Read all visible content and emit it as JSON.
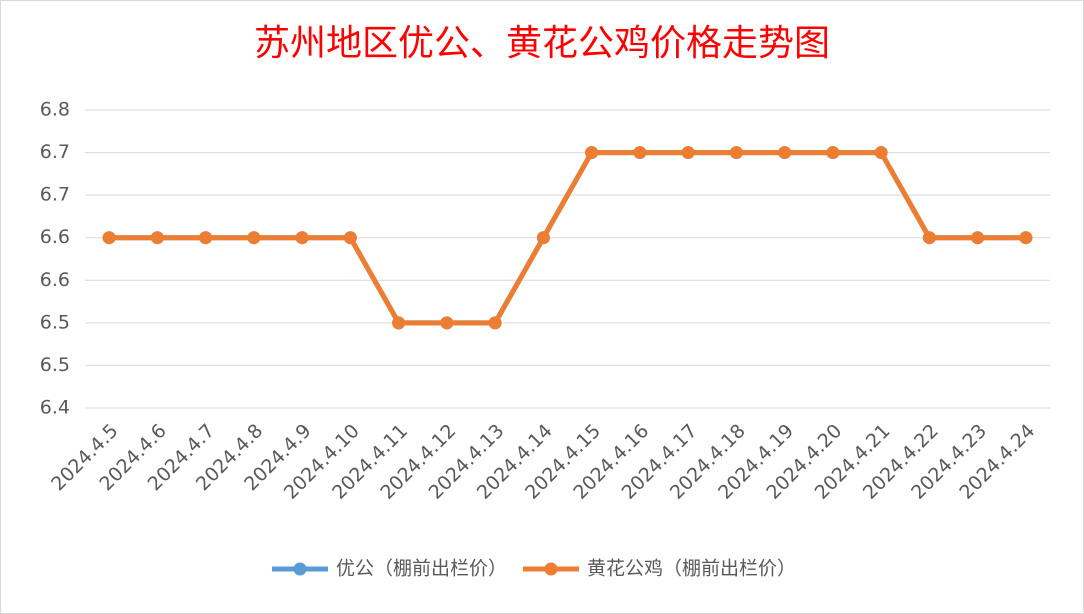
{
  "chart_data": {
    "type": "line",
    "title": "苏州地区优公、黄花公鸡价格走势图",
    "categories": [
      "2024.4.5",
      "2024.4.6",
      "2024.4.7",
      "2024.4.8",
      "2024.4.9",
      "2024.4.10",
      "2024.4.11",
      "2024.4.12",
      "2024.4.13",
      "2024.4.14",
      "2024.4.15",
      "2024.4.16",
      "2024.4.17",
      "2024.4.18",
      "2024.4.19",
      "2024.4.20",
      "2024.4.21",
      "2024.4.22",
      "2024.4.23",
      "2024.4.24"
    ],
    "series": [
      {
        "name": "优公（棚前出栏价）",
        "color": "#5b9bd5",
        "values": [
          6.6,
          6.6,
          6.6,
          6.6,
          6.6,
          6.6,
          6.5,
          6.5,
          6.5,
          6.6,
          6.7,
          6.7,
          6.7,
          6.7,
          6.7,
          6.7,
          6.7,
          6.6,
          6.6,
          6.6
        ]
      },
      {
        "name": "黄花公鸡（棚前出栏价）",
        "color": "#ed7d31",
        "values": [
          6.6,
          6.6,
          6.6,
          6.6,
          6.6,
          6.6,
          6.5,
          6.5,
          6.5,
          6.6,
          6.7,
          6.7,
          6.7,
          6.7,
          6.7,
          6.7,
          6.7,
          6.6,
          6.6,
          6.6
        ]
      }
    ],
    "ylim": [
      6.4,
      6.75
    ],
    "yticks": [
      6.4,
      {
        "value": 6.45,
        "label": "6.5"
      },
      6.5,
      {
        "value": 6.55,
        "label": "6.6"
      },
      6.6,
      {
        "value": 6.65,
        "label": "6.7"
      },
      6.7,
      {
        "value": 6.75,
        "label": "6.8"
      }
    ],
    "grid": true,
    "legend": "bottom"
  }
}
